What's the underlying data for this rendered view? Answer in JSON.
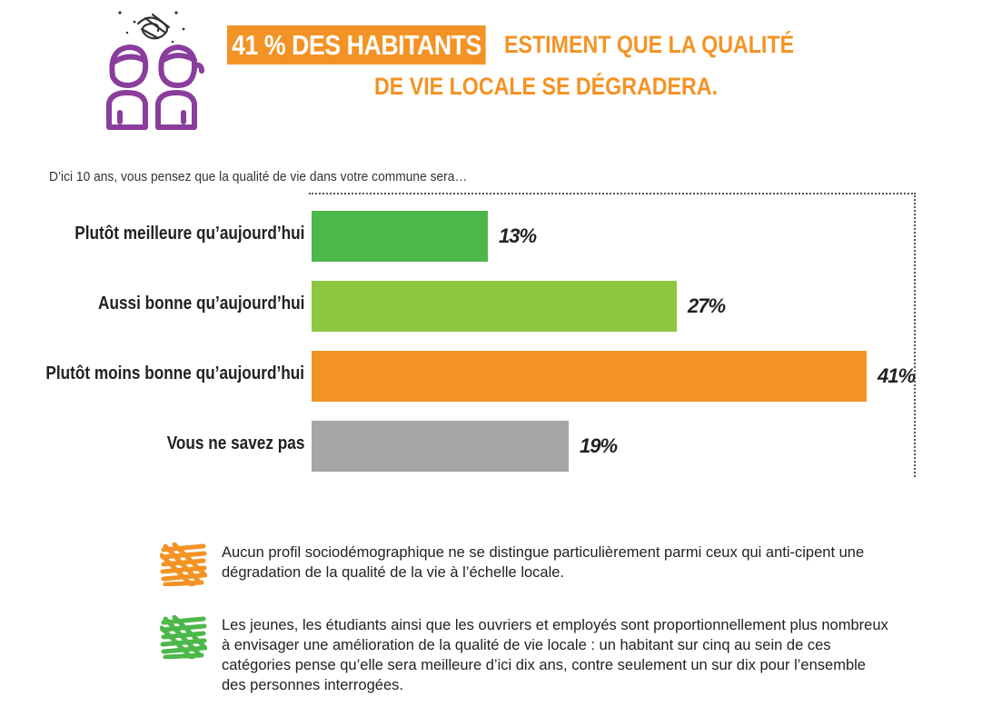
{
  "header": {
    "highlight": "41 % DES HABITANTS",
    "line1_rest": "ESTIMENT QUE LA QUALITÉ",
    "line2": "DE VIE LOCALE SE DÉGRADERA."
  },
  "colors": {
    "orange": "#f39325",
    "purple": "#8a3d9c",
    "green_dark": "#4cb849",
    "green_light": "#8dc63f",
    "gray": "#a6a6a9"
  },
  "chart_data": {
    "type": "bar",
    "title": "D’ici 10 ans, vous pensez que la qualité de vie dans votre commune sera…",
    "categories": [
      "Plutôt meilleure qu’aujourd’hui",
      "Aussi bonne qu’aujourd’hui",
      "Plutôt moins bonne qu’aujourd’hui",
      "Vous ne savez pas"
    ],
    "values": [
      13,
      27,
      41,
      19
    ],
    "value_labels": [
      "13%",
      "27%",
      "41%",
      "19%"
    ],
    "bar_colors": [
      "#4cb849",
      "#8dc63f",
      "#f39325",
      "#a6a6a9"
    ],
    "orientation": "horizontal",
    "xlim": [
      0,
      41
    ],
    "grid": false
  },
  "notes": [
    {
      "swatch": "orange",
      "text": "Aucun profil sociodémographique ne se distingue particulièrement parmi ceux qui anti-cipent une dégradation de la qualité de la vie à l’échelle locale."
    },
    {
      "swatch": "green",
      "text": "Les jeunes, les étudiants ainsi que les ouvriers et employés sont proportionnellement plus nombreux à envisager une amélioration de la qualité de vie locale : un habitant sur cinq au sein de ces catégories pense qu’elle sera meilleure d’ici dix ans, contre seulement un sur dix pour l’ensemble des personnes interrogées."
    }
  ]
}
